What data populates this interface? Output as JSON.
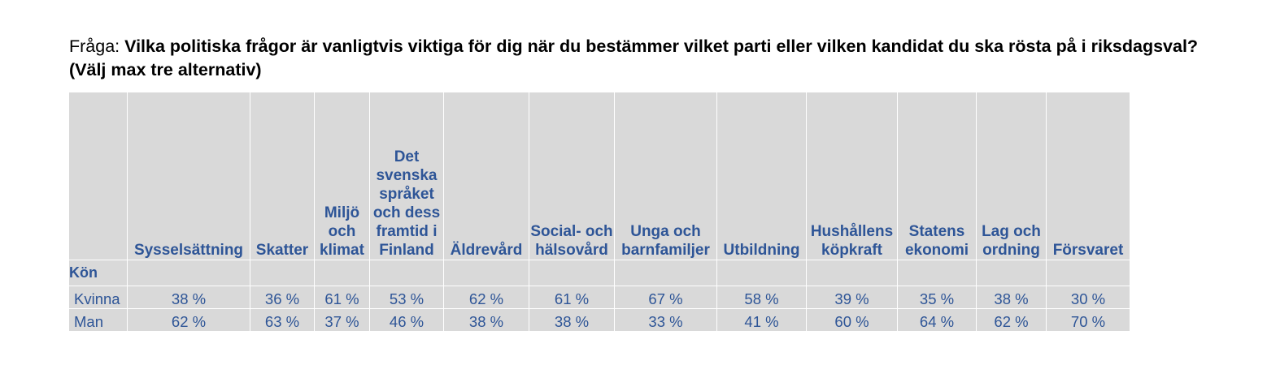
{
  "question": {
    "prefix": "Fråga: ",
    "text": "Vilka politiska frågor är vanligtvis viktiga för dig när du bestämmer vilket parti eller vilken kandidat du ska rösta på i riksdagsval? (Välj max tre alternativ)"
  },
  "table": {
    "columns": [
      "Sysselsättning",
      "Skatter",
      "Miljö och klimat",
      "Det svenska språket och dess framtid i Finland",
      "Äldrevård",
      "Social- och hälsovård",
      "Unga och barnfamiljer",
      "Utbildning",
      "Hushållens köpkraft",
      "Statens ekonomi",
      "Lag och ordning",
      "Försvaret"
    ],
    "group_label": "Kön",
    "rows": [
      {
        "label": "Kvinna",
        "values": [
          "38 %",
          "36 %",
          "61 %",
          "53 %",
          "62 %",
          "61 %",
          "67 %",
          "58 %",
          "39 %",
          "35 %",
          "38 %",
          "30 %"
        ]
      },
      {
        "label": "Man",
        "values": [
          "62 %",
          "63 %",
          "37 %",
          "46 %",
          "38 %",
          "38 %",
          "33 %",
          "41 %",
          "60 %",
          "64 %",
          "62 %",
          "70 %"
        ]
      }
    ]
  },
  "colors": {
    "header_text": "#2e5597",
    "cell_background": "#d9d9d9",
    "grid_lines": "#ffffff"
  }
}
